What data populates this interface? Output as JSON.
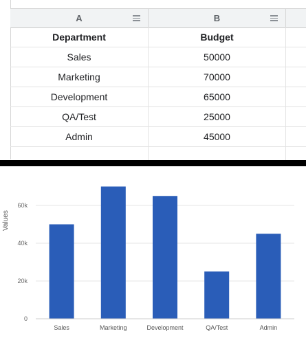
{
  "sheet": {
    "columns": [
      "A",
      "B",
      ""
    ],
    "rows": [
      [
        "Department",
        "Budget"
      ],
      [
        "Sales",
        "50000"
      ],
      [
        "Marketing",
        "70000"
      ],
      [
        "Development",
        "65000"
      ],
      [
        "QA/Test",
        "25000"
      ],
      [
        "Admin",
        "45000"
      ],
      [
        "",
        ""
      ]
    ]
  },
  "chart_data": {
    "type": "bar",
    "categories": [
      "Sales",
      "Marketing",
      "Development",
      "QA/Test",
      "Admin"
    ],
    "values": [
      50000,
      70000,
      65000,
      25000,
      45000
    ],
    "ylabel": "Values",
    "yticks": [
      "0",
      "20k",
      "40k",
      "60k"
    ],
    "ylim": [
      0,
      70000
    ],
    "grid": true,
    "bar_color": "#2a5db8"
  },
  "colors": {
    "header_bg": "#f1f3f4",
    "grid_line": "#e3e3e3",
    "divider": "#000000"
  }
}
